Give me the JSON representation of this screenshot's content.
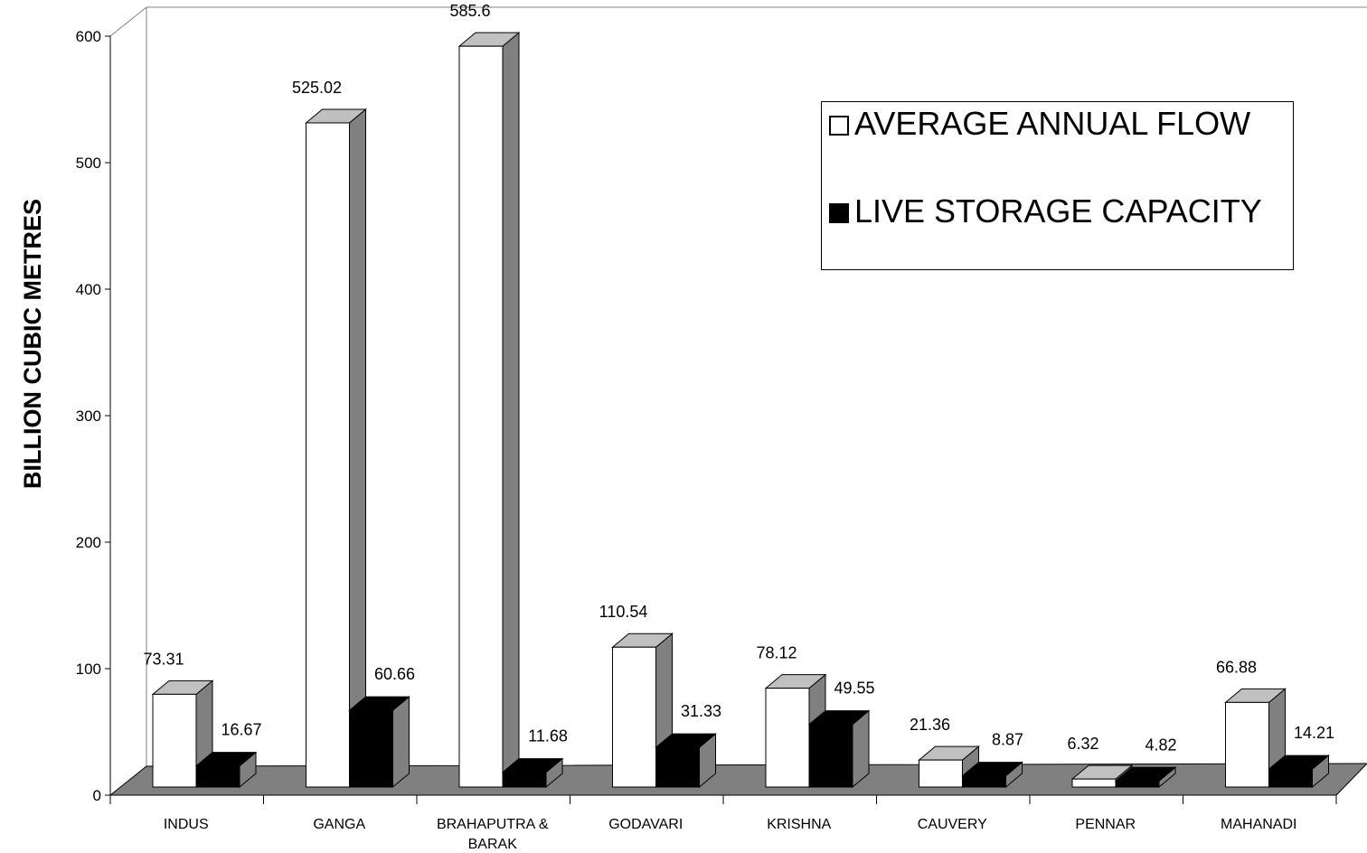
{
  "chart_data": {
    "type": "bar",
    "title": "",
    "xlabel": "",
    "ylabel": "BILLION CUBIC METRES",
    "ylim": [
      0,
      600
    ],
    "yticks": [
      0,
      100,
      200,
      300,
      400,
      500,
      600
    ],
    "grid": false,
    "legend_position": "top-right",
    "style": "3d-clustered-columns",
    "categories": [
      "INDUS",
      "GANGA",
      "BRAHAPUTRA & BARAK",
      "GODAVARI",
      "KRISHNA",
      "CAUVERY",
      "PENNAR",
      "MAHANADI"
    ],
    "category_lines": [
      [
        "INDUS"
      ],
      [
        "GANGA"
      ],
      [
        "BRAHAPUTRA &",
        "BARAK"
      ],
      [
        "GODAVARI"
      ],
      [
        "KRISHNA"
      ],
      [
        "CAUVERY"
      ],
      [
        "PENNAR"
      ],
      [
        "MAHANADI"
      ]
    ],
    "series": [
      {
        "name": "AVERAGE ANNUAL FLOW",
        "values": [
          73.31,
          525.02,
          585.6,
          110.54,
          78.12,
          21.36,
          6.32,
          66.88
        ],
        "labels": [
          "73.31",
          "525.02",
          "585.6",
          "110.54",
          "78.12",
          "21.36",
          "6.32",
          "66.88"
        ],
        "color": "#ffffff"
      },
      {
        "name": "LIVE STORAGE CAPACITY",
        "values": [
          16.67,
          60.66,
          11.68,
          31.33,
          49.55,
          8.87,
          4.82,
          14.21
        ],
        "labels": [
          "16.67",
          "60.66",
          "11.68",
          "31.33",
          "49.55",
          "8.87",
          "4.82",
          "14.21"
        ],
        "color": "#000000"
      }
    ],
    "colors": {
      "floor": "#808080",
      "side": "#808080",
      "top": "#c0c0c0",
      "outline": "#000000",
      "wall": "#808080"
    }
  }
}
